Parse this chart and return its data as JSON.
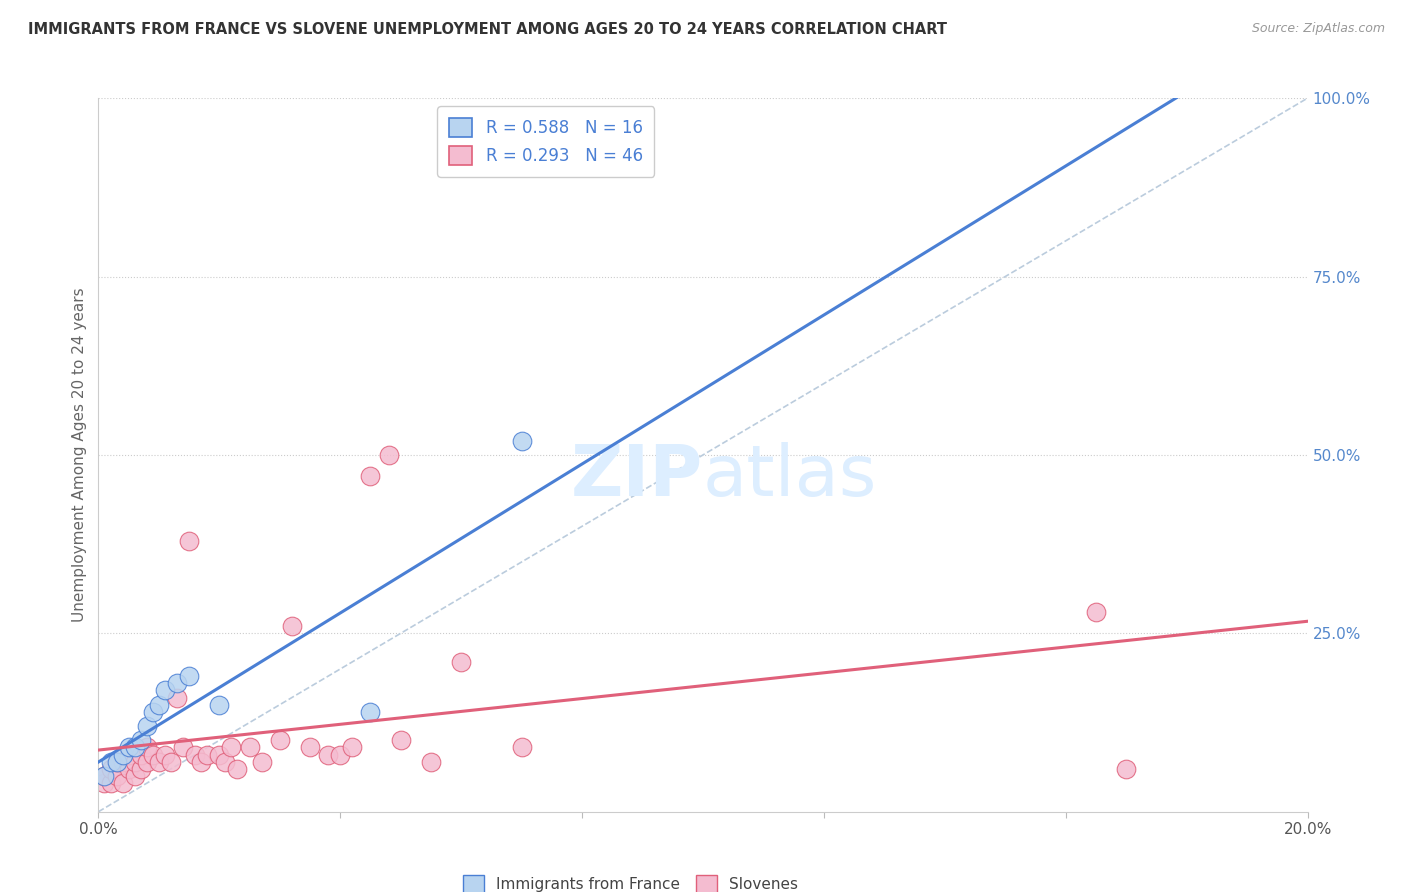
{
  "title": "IMMIGRANTS FROM FRANCE VS SLOVENE UNEMPLOYMENT AMONG AGES 20 TO 24 YEARS CORRELATION CHART",
  "source": "Source: ZipAtlas.com",
  "ylabel": "Unemployment Among Ages 20 to 24 years",
  "legend1_label": "R = 0.588   N = 16",
  "legend2_label": "R = 0.293   N = 46",
  "legend1_color": "#b8d4f0",
  "legend2_color": "#f4bcd0",
  "trendline1_color": "#4a7fd4",
  "trendline2_color": "#e0607a",
  "diag_line_color": "#bbccdd",
  "grid_color": "#cccccc",
  "title_color": "#333333",
  "source_color": "#999999",
  "right_axis_color": "#5588cc",
  "watermark_color": "#ddeeff",
  "france_points": [
    [
      0.001,
      0.05
    ],
    [
      0.002,
      0.07
    ],
    [
      0.003,
      0.07
    ],
    [
      0.004,
      0.08
    ],
    [
      0.005,
      0.09
    ],
    [
      0.006,
      0.09
    ],
    [
      0.007,
      0.1
    ],
    [
      0.008,
      0.12
    ],
    [
      0.009,
      0.14
    ],
    [
      0.01,
      0.15
    ],
    [
      0.011,
      0.17
    ],
    [
      0.013,
      0.18
    ],
    [
      0.015,
      0.19
    ],
    [
      0.02,
      0.15
    ],
    [
      0.045,
      0.14
    ],
    [
      0.07,
      0.52
    ]
  ],
  "slovene_points": [
    [
      0.001,
      0.04
    ],
    [
      0.001,
      0.05
    ],
    [
      0.002,
      0.04
    ],
    [
      0.002,
      0.06
    ],
    [
      0.003,
      0.05
    ],
    [
      0.003,
      0.07
    ],
    [
      0.004,
      0.07
    ],
    [
      0.004,
      0.04
    ],
    [
      0.005,
      0.06
    ],
    [
      0.005,
      0.08
    ],
    [
      0.006,
      0.05
    ],
    [
      0.006,
      0.07
    ],
    [
      0.007,
      0.06
    ],
    [
      0.007,
      0.08
    ],
    [
      0.008,
      0.07
    ],
    [
      0.008,
      0.09
    ],
    [
      0.009,
      0.08
    ],
    [
      0.01,
      0.07
    ],
    [
      0.011,
      0.08
    ],
    [
      0.012,
      0.07
    ],
    [
      0.013,
      0.16
    ],
    [
      0.014,
      0.09
    ],
    [
      0.015,
      0.38
    ],
    [
      0.016,
      0.08
    ],
    [
      0.017,
      0.07
    ],
    [
      0.018,
      0.08
    ],
    [
      0.02,
      0.08
    ],
    [
      0.021,
      0.07
    ],
    [
      0.022,
      0.09
    ],
    [
      0.023,
      0.06
    ],
    [
      0.025,
      0.09
    ],
    [
      0.027,
      0.07
    ],
    [
      0.03,
      0.1
    ],
    [
      0.032,
      0.26
    ],
    [
      0.035,
      0.09
    ],
    [
      0.038,
      0.08
    ],
    [
      0.04,
      0.08
    ],
    [
      0.042,
      0.09
    ],
    [
      0.045,
      0.47
    ],
    [
      0.048,
      0.5
    ],
    [
      0.05,
      0.1
    ],
    [
      0.055,
      0.07
    ],
    [
      0.06,
      0.21
    ],
    [
      0.07,
      0.09
    ],
    [
      0.165,
      0.28
    ],
    [
      0.17,
      0.06
    ]
  ],
  "xmin": 0.0,
  "xmax": 0.2,
  "ymin": 0.0,
  "ymax": 1.0,
  "figwidth": 14.06,
  "figheight": 8.92
}
